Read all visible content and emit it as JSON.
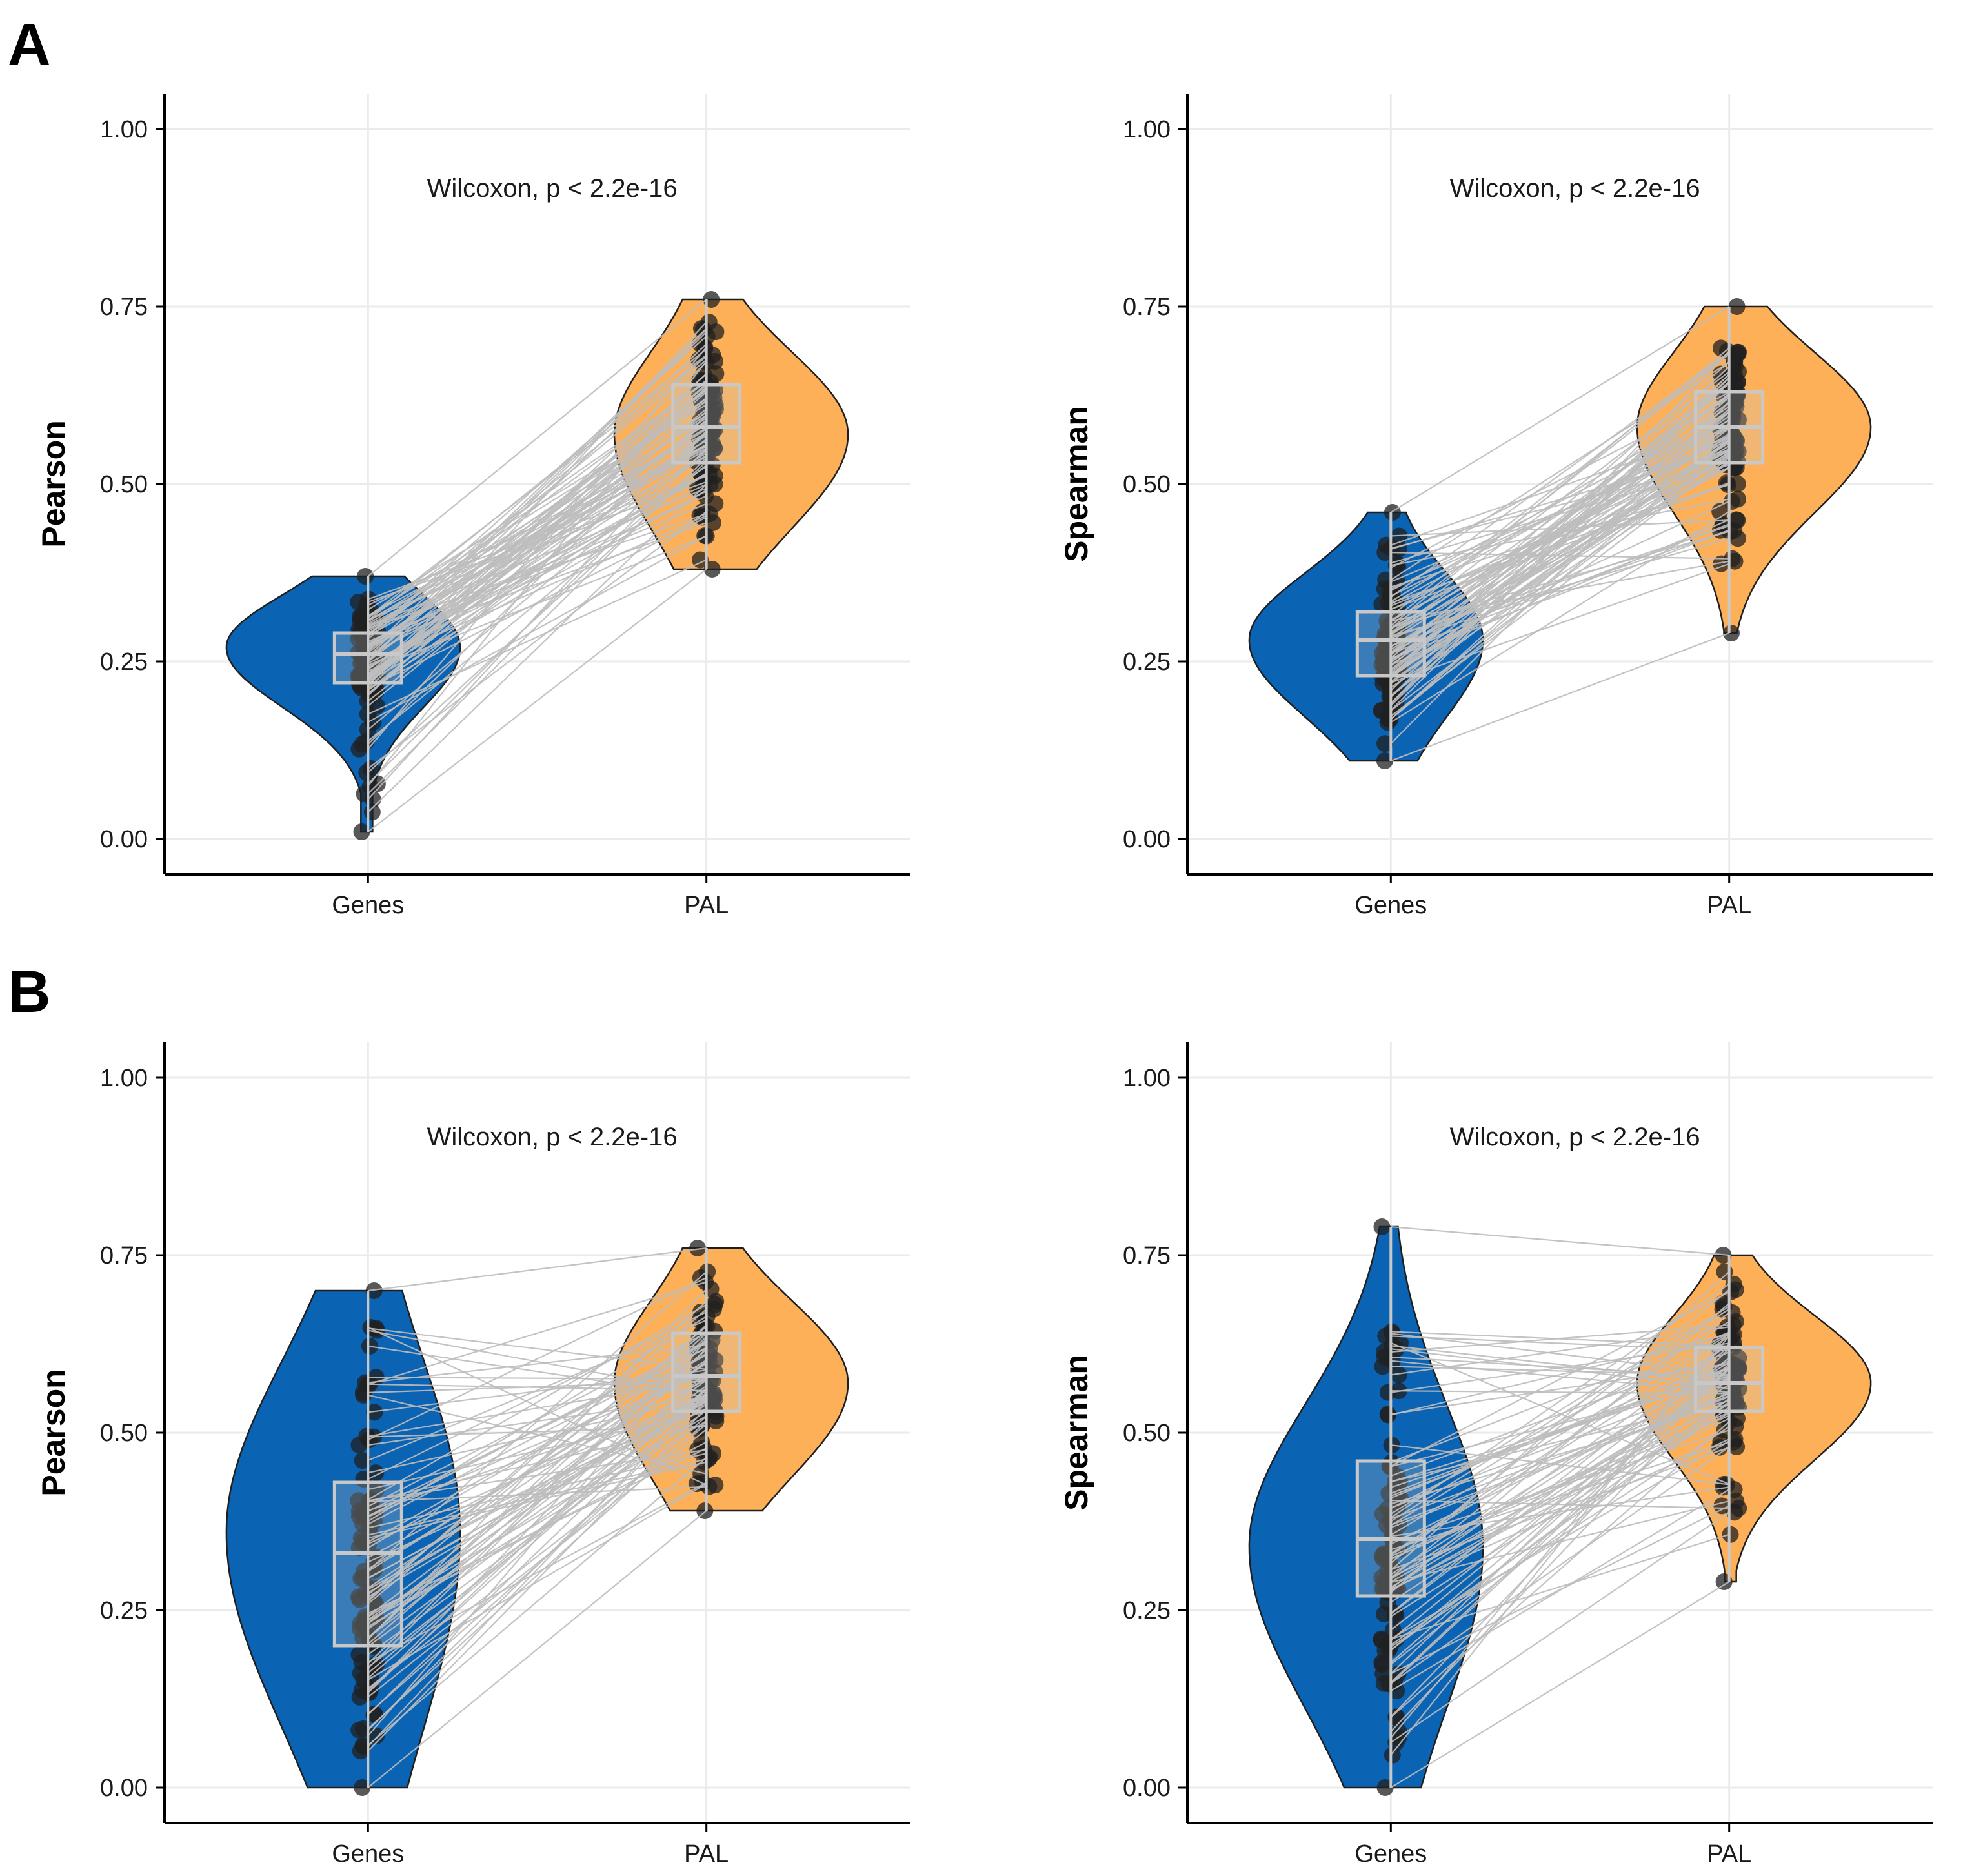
{
  "colors": {
    "genes": "#0b63b3",
    "pal": "#fdb058",
    "pair_line": "#bdbdbd",
    "box": "#c8c8c8",
    "point": "#202020",
    "grid": "#ebebeb"
  },
  "panel_labels": [
    "A",
    "B"
  ],
  "chart_data": [
    {
      "type": "violin",
      "panel": "A",
      "xlabel": "",
      "ylabel": "Pearson",
      "categories": [
        "Genes",
        "PAL"
      ],
      "ylim": [
        0,
        1
      ],
      "yticks": [
        "0.00",
        "0.25",
        "0.50",
        "0.75",
        "1.00"
      ],
      "annotation": "Wilcoxon, p < 2.2e-16",
      "series": [
        {
          "name": "Genes",
          "min": 0.01,
          "q1": 0.22,
          "median": 0.26,
          "q3": 0.29,
          "max": 0.37,
          "mode": 0.27
        },
        {
          "name": "PAL",
          "min": 0.38,
          "q1": 0.53,
          "median": 0.58,
          "q3": 0.64,
          "max": 0.76,
          "mode": 0.57
        }
      ]
    },
    {
      "type": "violin",
      "panel": "A",
      "xlabel": "",
      "ylabel": "Spearman",
      "categories": [
        "Genes",
        "PAL"
      ],
      "ylim": [
        0,
        1
      ],
      "yticks": [
        "0.00",
        "0.25",
        "0.50",
        "0.75",
        "1.00"
      ],
      "annotation": "Wilcoxon, p < 2.2e-16",
      "series": [
        {
          "name": "Genes",
          "min": 0.11,
          "q1": 0.23,
          "median": 0.28,
          "q3": 0.32,
          "max": 0.46,
          "mode": 0.28
        },
        {
          "name": "PAL",
          "min": 0.29,
          "q1": 0.53,
          "median": 0.58,
          "q3": 0.63,
          "max": 0.75,
          "mode": 0.58
        }
      ]
    },
    {
      "type": "violin",
      "panel": "B",
      "xlabel": "",
      "ylabel": "Pearson",
      "categories": [
        "Genes",
        "PAL"
      ],
      "ylim": [
        0,
        1
      ],
      "yticks": [
        "0.00",
        "0.25",
        "0.50",
        "0.75",
        "1.00"
      ],
      "annotation": "Wilcoxon, p < 2.2e-16",
      "series": [
        {
          "name": "Genes",
          "min": 0.0,
          "q1": 0.2,
          "median": 0.33,
          "q3": 0.43,
          "max": 0.7,
          "mode": 0.36
        },
        {
          "name": "PAL",
          "min": 0.39,
          "q1": 0.53,
          "median": 0.58,
          "q3": 0.64,
          "max": 0.76,
          "mode": 0.57
        }
      ]
    },
    {
      "type": "violin",
      "panel": "B",
      "xlabel": "",
      "ylabel": "Spearman",
      "categories": [
        "Genes",
        "PAL"
      ],
      "ylim": [
        0,
        1
      ],
      "yticks": [
        "0.00",
        "0.25",
        "0.50",
        "0.75",
        "1.00"
      ],
      "annotation": "Wilcoxon, p < 2.2e-16",
      "series": [
        {
          "name": "Genes",
          "min": 0.0,
          "q1": 0.27,
          "median": 0.35,
          "q3": 0.46,
          "max": 0.79,
          "mode": 0.34
        },
        {
          "name": "PAL",
          "min": 0.29,
          "q1": 0.53,
          "median": 0.57,
          "q3": 0.62,
          "max": 0.75,
          "mode": 0.57
        }
      ]
    }
  ]
}
